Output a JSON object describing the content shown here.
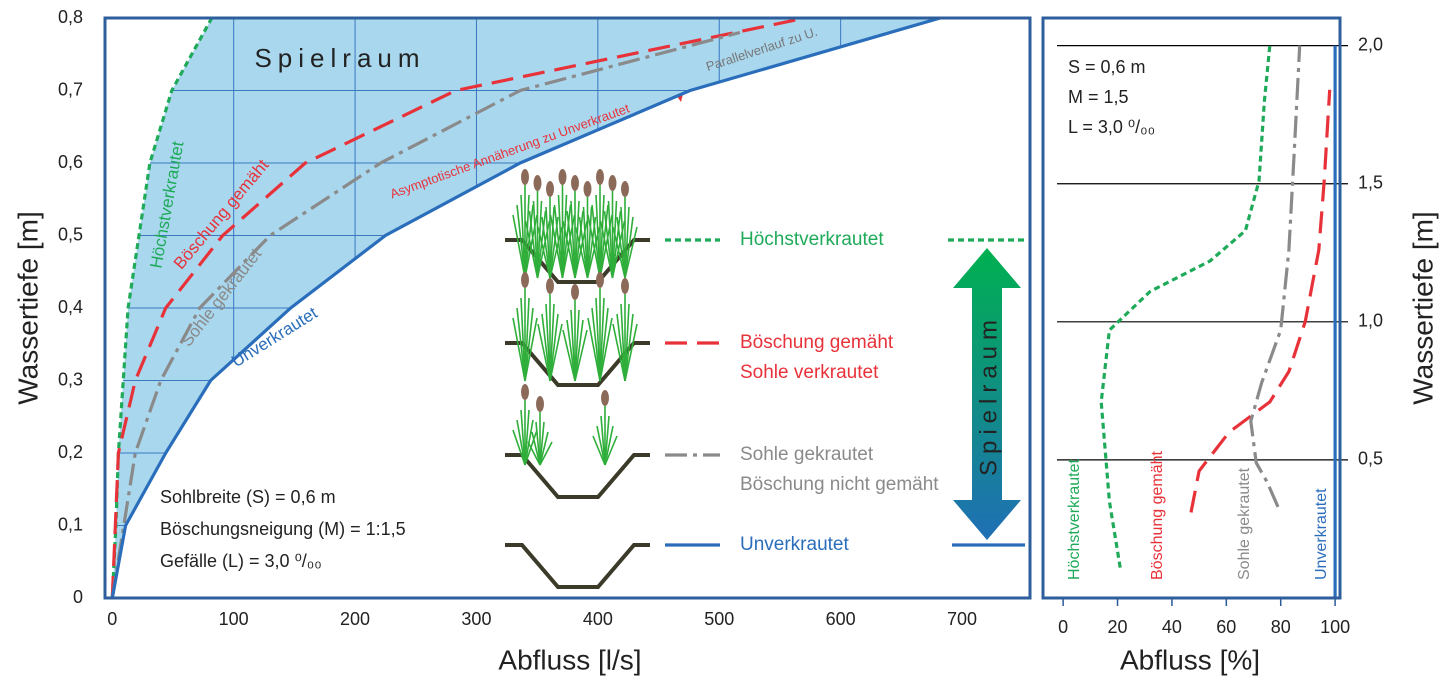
{
  "chart_data": [
    {
      "type": "line",
      "x_label": "Abfluss [l/s]",
      "y_label": "Wassertiefe [m]",
      "xlim": [
        -6,
        756
      ],
      "ylim": [
        0,
        0.8
      ],
      "xticks": [
        0,
        100,
        200,
        300,
        400,
        500,
        600,
        700
      ],
      "yticks": [
        {
          "value": 0,
          "label": "0"
        },
        {
          "value": 0.1,
          "label": "0,1"
        },
        {
          "value": 0.2,
          "label": "0,2"
        },
        {
          "value": 0.3,
          "label": "0,3"
        },
        {
          "value": 0.4,
          "label": "0,4"
        },
        {
          "value": 0.5,
          "label": "0,5"
        },
        {
          "value": 0.6,
          "label": "0,6"
        },
        {
          "value": 0.7,
          "label": "0,7"
        },
        {
          "value": 0.8,
          "label": "0,8"
        }
      ],
      "grid": true,
      "fill_color": "#a9d7ee",
      "grid_color": "#3a78c0",
      "series": [
        {
          "name": "Höchstverkrautet",
          "color": "#1faa59",
          "dash": "6,4",
          "x": [
            0,
            3,
            5,
            13,
            31,
            49,
            82
          ],
          "values": [
            0,
            0.1,
            0.2,
            0.4,
            0.6,
            0.7,
            0.8
          ]
        },
        {
          "name": "Böschung gemäht",
          "detail": "Sohle verkrautet",
          "color": "#e8323a",
          "dash": "22,10",
          "x": [
            0,
            5,
            19,
            44,
            91,
            159,
            283,
            571
          ],
          "values": [
            0,
            0.2,
            0.3,
            0.4,
            0.5,
            0.6,
            0.7,
            0.8
          ]
        },
        {
          "name": "Sohle gekrautet",
          "detail": "Böschung nicht gemäht",
          "color": "#8a8a8a",
          "dash": "22,6,4,6",
          "x": [
            0,
            19,
            40,
            72,
            130,
            221,
            336,
            517
          ],
          "values": [
            0,
            0.2,
            0.3,
            0.4,
            0.5,
            0.6,
            0.7,
            0.78
          ]
        },
        {
          "name": "Unverkrautet",
          "color": "#2a6ebb",
          "dash": "",
          "x": [
            0,
            11,
            44,
            81,
            147,
            225,
            336,
            476,
            682
          ],
          "values": [
            0,
            0.1,
            0.2,
            0.3,
            0.4,
            0.5,
            0.6,
            0.7,
            0.8
          ]
        }
      ],
      "annotations": [
        "Spielraum",
        "Asymptotische Annäherung zu Unverkrautet",
        "Parallelverlauf zu U.",
        "Sohlbreite (S) = 0,6 m",
        "Böschungsneigung  (M) = 1:1,5",
        "Gefälle (L) = 3,0 ⁰/₀₀"
      ]
    },
    {
      "type": "line",
      "x_label": "Abfluss [%]",
      "y_label": "Wassertiefe [m]",
      "xlim": [
        -7.4,
        101.8
      ],
      "ylim": [
        0,
        2.1
      ],
      "xticks": [
        0,
        20,
        40,
        60,
        80,
        100
      ],
      "yticks": [
        {
          "value": 0.5,
          "label": "0,5"
        },
        {
          "value": 1.0,
          "label": "1,0"
        },
        {
          "value": 1.5,
          "label": "1,5"
        },
        {
          "value": 2.0,
          "label": "2,0"
        }
      ],
      "grid": true,
      "grid_color": "#000000",
      "series": [
        {
          "name": "Höchstverkrautet",
          "color": "#1faa59",
          "dash": "6,4",
          "x": [
            21,
            17,
            14,
            17,
            32,
            54,
            67,
            72,
            74,
            76
          ],
          "values": [
            0.11,
            0.35,
            0.71,
            0.97,
            1.11,
            1.22,
            1.33,
            1.51,
            1.8,
            2.0
          ]
        },
        {
          "name": "Böschung gemäht",
          "color": "#e8323a",
          "dash": "22,10",
          "x": [
            47,
            50,
            61,
            76,
            83,
            89,
            94,
            96,
            98
          ],
          "values": [
            0.31,
            0.46,
            0.6,
            0.71,
            0.82,
            1.0,
            1.26,
            1.51,
            1.84
          ]
        },
        {
          "name": "Sohle gekrautet",
          "color": "#8a8a8a",
          "dash": "22,6,4,6",
          "x": [
            79,
            75,
            71,
            69,
            73,
            80,
            83,
            85,
            87
          ],
          "values": [
            0.33,
            0.42,
            0.49,
            0.64,
            0.78,
            0.97,
            1.26,
            1.62,
            2.0
          ]
        },
        {
          "name": "Unverkrautet",
          "color": "#2a6ebb",
          "dash": "",
          "x": [
            100,
            100
          ],
          "values": [
            0,
            2.0
          ]
        }
      ],
      "annotations": [
        "S = 0,6 m",
        "M = 1,5",
        "L = 3,0 ⁰/₀₀"
      ]
    }
  ]
}
